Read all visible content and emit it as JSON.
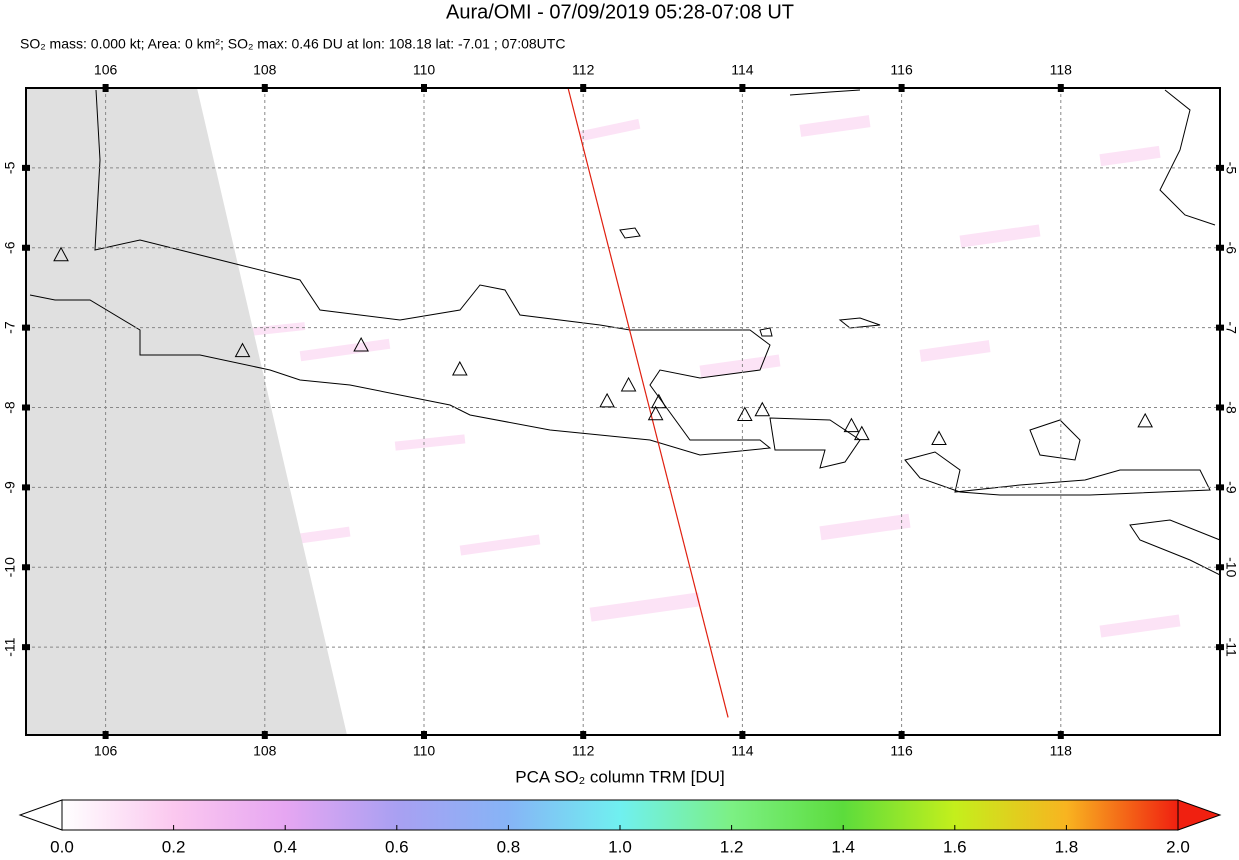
{
  "chart_data": {
    "type": "map",
    "title": "Aura/OMI - 07/09/2019 05:28-07:08 UT",
    "subtitle": "SO₂ mass: 0.000 kt; Area: 0 km²; SO₂ max: 0.46 DU at lon: 108.18 lat: -7.01 ; 07:08UTC",
    "xlim": [
      105,
      120
    ],
    "ylim": [
      -12.1,
      -4
    ],
    "xticks": [
      106,
      108,
      110,
      112,
      114,
      116,
      118
    ],
    "yticks": [
      -5,
      -6,
      -7,
      -8,
      -9,
      -10,
      -11
    ],
    "grid": true,
    "volcanoes": {
      "lon": [
        105.44,
        107.72,
        109.21,
        110.45,
        112.3,
        112.57,
        112.95,
        112.91,
        114.03,
        114.25,
        115.37,
        115.5,
        116.47,
        119.06
      ],
      "lat": [
        -6.1,
        -7.3,
        -7.23,
        -7.53,
        -7.93,
        -7.73,
        -7.94,
        -8.09,
        -8.1,
        -8.04,
        -8.24,
        -8.34,
        -8.4,
        -8.18
      ]
    },
    "track": {
      "lon": [
        111.81,
        113.82
      ],
      "lat": [
        -4.0,
        -11.88
      ],
      "color": "#e02010"
    },
    "colorbar": {
      "label": "PCA SO₂ column TRM [DU]",
      "clim": [
        0,
        2
      ],
      "ticks": [
        {
          "value": 0,
          "label": "0.0"
        },
        0.2,
        0.4,
        0.6,
        0.8,
        {
          "value": 1,
          "label": "1.0"
        },
        1.2,
        1.4,
        1.6,
        1.8,
        {
          "value": 2,
          "label": "2.0"
        }
      ],
      "colors": [
        "#ffffff",
        "#fbc8ef",
        "#e6a6f2",
        "#a9a0f2",
        "#86b4f6",
        "#70f0f0",
        "#7cf084",
        "#5cdc3c",
        "#c4ef1c",
        "#f8b420",
        "#f02010"
      ]
    }
  }
}
